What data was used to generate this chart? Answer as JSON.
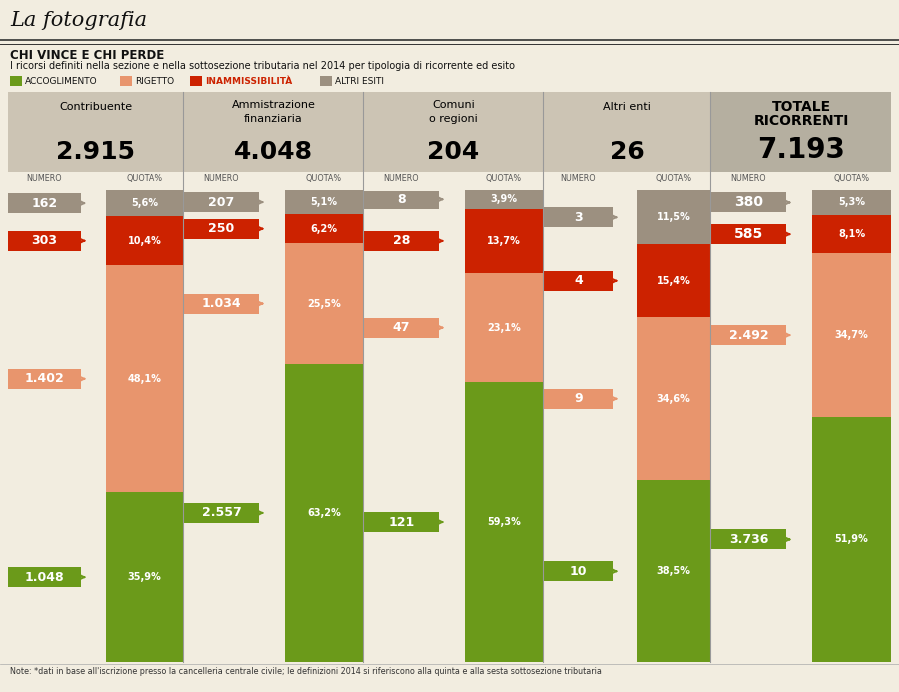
{
  "title": "La fotografia",
  "subtitle_bold": "CHI VINCE E CHI PERDE",
  "subtitle_regular": "I ricorsi definiti nella sezione e nella sottosezione tributaria nel 2014 per tipologia di ricorrente ed esito",
  "legend_items": [
    "ACCOGLIMENTO",
    "RIGETTO",
    "INAMMISSIBILITÀ",
    "ALTRI ESITI"
  ],
  "legend_colors": [
    "#6b9a1a",
    "#e8956d",
    "#cc2200",
    "#9c9080"
  ],
  "note": "Note: *dati in base all'iscrizione presso la cancelleria centrale civile; le definizioni 2014 si riferiscono alla quinta e alla sesta sottosezione tributaria",
  "groups": [
    {
      "title": "Contribuente",
      "total": "2.915",
      "header_bg": "#ccc4b4",
      "values": [
        1048,
        1402,
        303,
        162
      ],
      "percents": [
        "35,9%",
        "48,1%",
        "10,4%",
        "5,6%"
      ],
      "colors": [
        "#6b9a1a",
        "#e8956d",
        "#cc2200",
        "#9c9080"
      ],
      "bold": false
    },
    {
      "title": "Ammistrazione\nfinanziaria",
      "total": "4.048",
      "header_bg": "#ccc4b4",
      "values": [
        2557,
        1034,
        250,
        207
      ],
      "percents": [
        "63,2%",
        "25,5%",
        "6,2%",
        "5,1%"
      ],
      "colors": [
        "#6b9a1a",
        "#e8956d",
        "#cc2200",
        "#9c9080"
      ],
      "bold": false
    },
    {
      "title": "Comuni\no regioni",
      "total": "204",
      "header_bg": "#ccc4b4",
      "values": [
        121,
        47,
        28,
        8
      ],
      "percents": [
        "59,3%",
        "23,1%",
        "13,7%",
        "3,9%"
      ],
      "colors": [
        "#6b9a1a",
        "#e8956d",
        "#cc2200",
        "#9c9080"
      ],
      "bold": false
    },
    {
      "title": "Altri enti",
      "total": "26",
      "header_bg": "#ccc4b4",
      "values": [
        10,
        9,
        4,
        3
      ],
      "percents": [
        "38,5%",
        "34,6%",
        "15,4%",
        "11,5%"
      ],
      "colors": [
        "#6b9a1a",
        "#e8956d",
        "#cc2200",
        "#9c9080"
      ],
      "bold": false
    },
    {
      "title": "TOTALE\nRICORRENTI",
      "total": "7.193",
      "header_bg": "#b5afa0",
      "values": [
        3736,
        2492,
        585,
        380
      ],
      "percents": [
        "51,9%",
        "34,7%",
        "8,1%",
        "5,3%"
      ],
      "colors": [
        "#6b9a1a",
        "#e8956d",
        "#cc2200",
        "#9c9080"
      ],
      "bold": true
    }
  ],
  "bg_color": "#f2ede0",
  "num_col_bg": "#f2ede0",
  "pct_col_bg": "#e0d8c8"
}
